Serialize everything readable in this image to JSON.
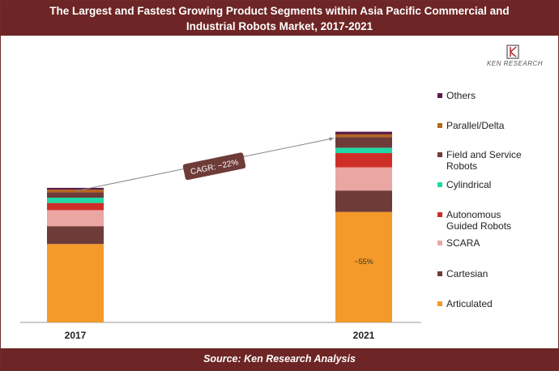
{
  "title": [
    "The Largest and Fastest Growing Product Segments within Asia Pacific Commercial and",
    "Industrial Robots Market, 2017-2021"
  ],
  "source": "Source: Ken Research Analysis",
  "logo_text": "KEN RESEARCH",
  "colors": {
    "header": "#6e2525",
    "Articulated": "#f39a2a",
    "Cartesian": "#6e3b38",
    "SCARA": "#eaa6a3",
    "Autonomous Guided Robots": "#cf2e28",
    "Cylindrical": "#20d9a8",
    "Field and Service Robots": "#6e3b38",
    "Parallel/Delta": "#b5661c",
    "Others": "#5b1a47"
  },
  "chart_data": {
    "type": "bar",
    "stacked": true,
    "categories": [
      "2017",
      "2021"
    ],
    "series": [
      {
        "name": "Articulated",
        "values": [
          44,
          62
        ]
      },
      {
        "name": "Cartesian",
        "values": [
          10,
          12
        ]
      },
      {
        "name": "SCARA",
        "values": [
          9,
          13
        ]
      },
      {
        "name": "Autonomous Guided Robots",
        "values": [
          4,
          8
        ]
      },
      {
        "name": "Cylindrical",
        "values": [
          3,
          3
        ]
      },
      {
        "name": "Field and Service Robots",
        "values": [
          3,
          6
        ]
      },
      {
        "name": "Parallel/Delta",
        "values": [
          1.5,
          1.5
        ]
      },
      {
        "name": "Others",
        "values": [
          1,
          1.5
        ]
      }
    ],
    "annotations": {
      "cagr": "CAGR: ~22%",
      "share": "~55%"
    },
    "legend_position": "right",
    "grid": false
  }
}
